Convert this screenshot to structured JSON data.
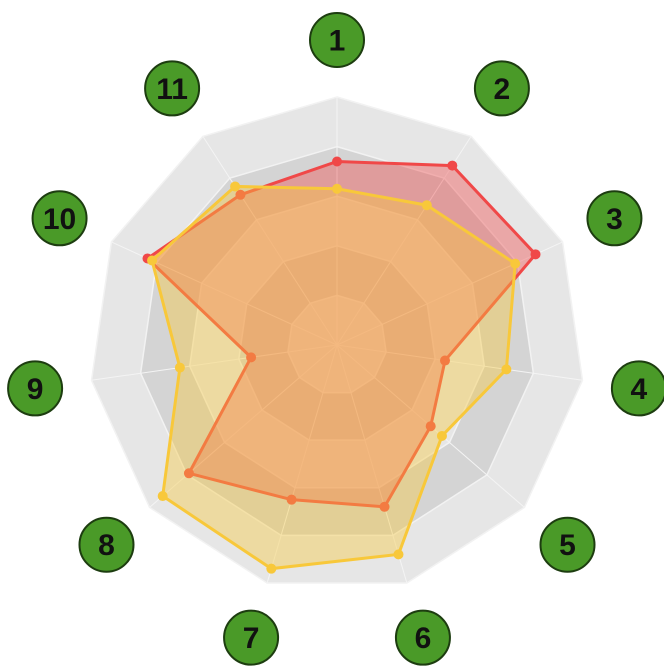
{
  "chart_data": {
    "type": "radar",
    "categories": [
      "1",
      "2",
      "3",
      "4",
      "5",
      "6",
      "7",
      "8",
      "9",
      "10",
      "11"
    ],
    "ylim": [
      0,
      100
    ],
    "yticks": [
      20,
      40,
      60,
      80,
      100
    ],
    "grid": true,
    "series": [
      {
        "color": "#f04848",
        "values": [
          74,
          86,
          88,
          44,
          50,
          68,
          65,
          79,
          35,
          84,
          72
        ]
      },
      {
        "color": "#f8c83a",
        "values": [
          63,
          67,
          79,
          69,
          56,
          88,
          94,
          93,
          64,
          82,
          76
        ]
      }
    ]
  }
}
